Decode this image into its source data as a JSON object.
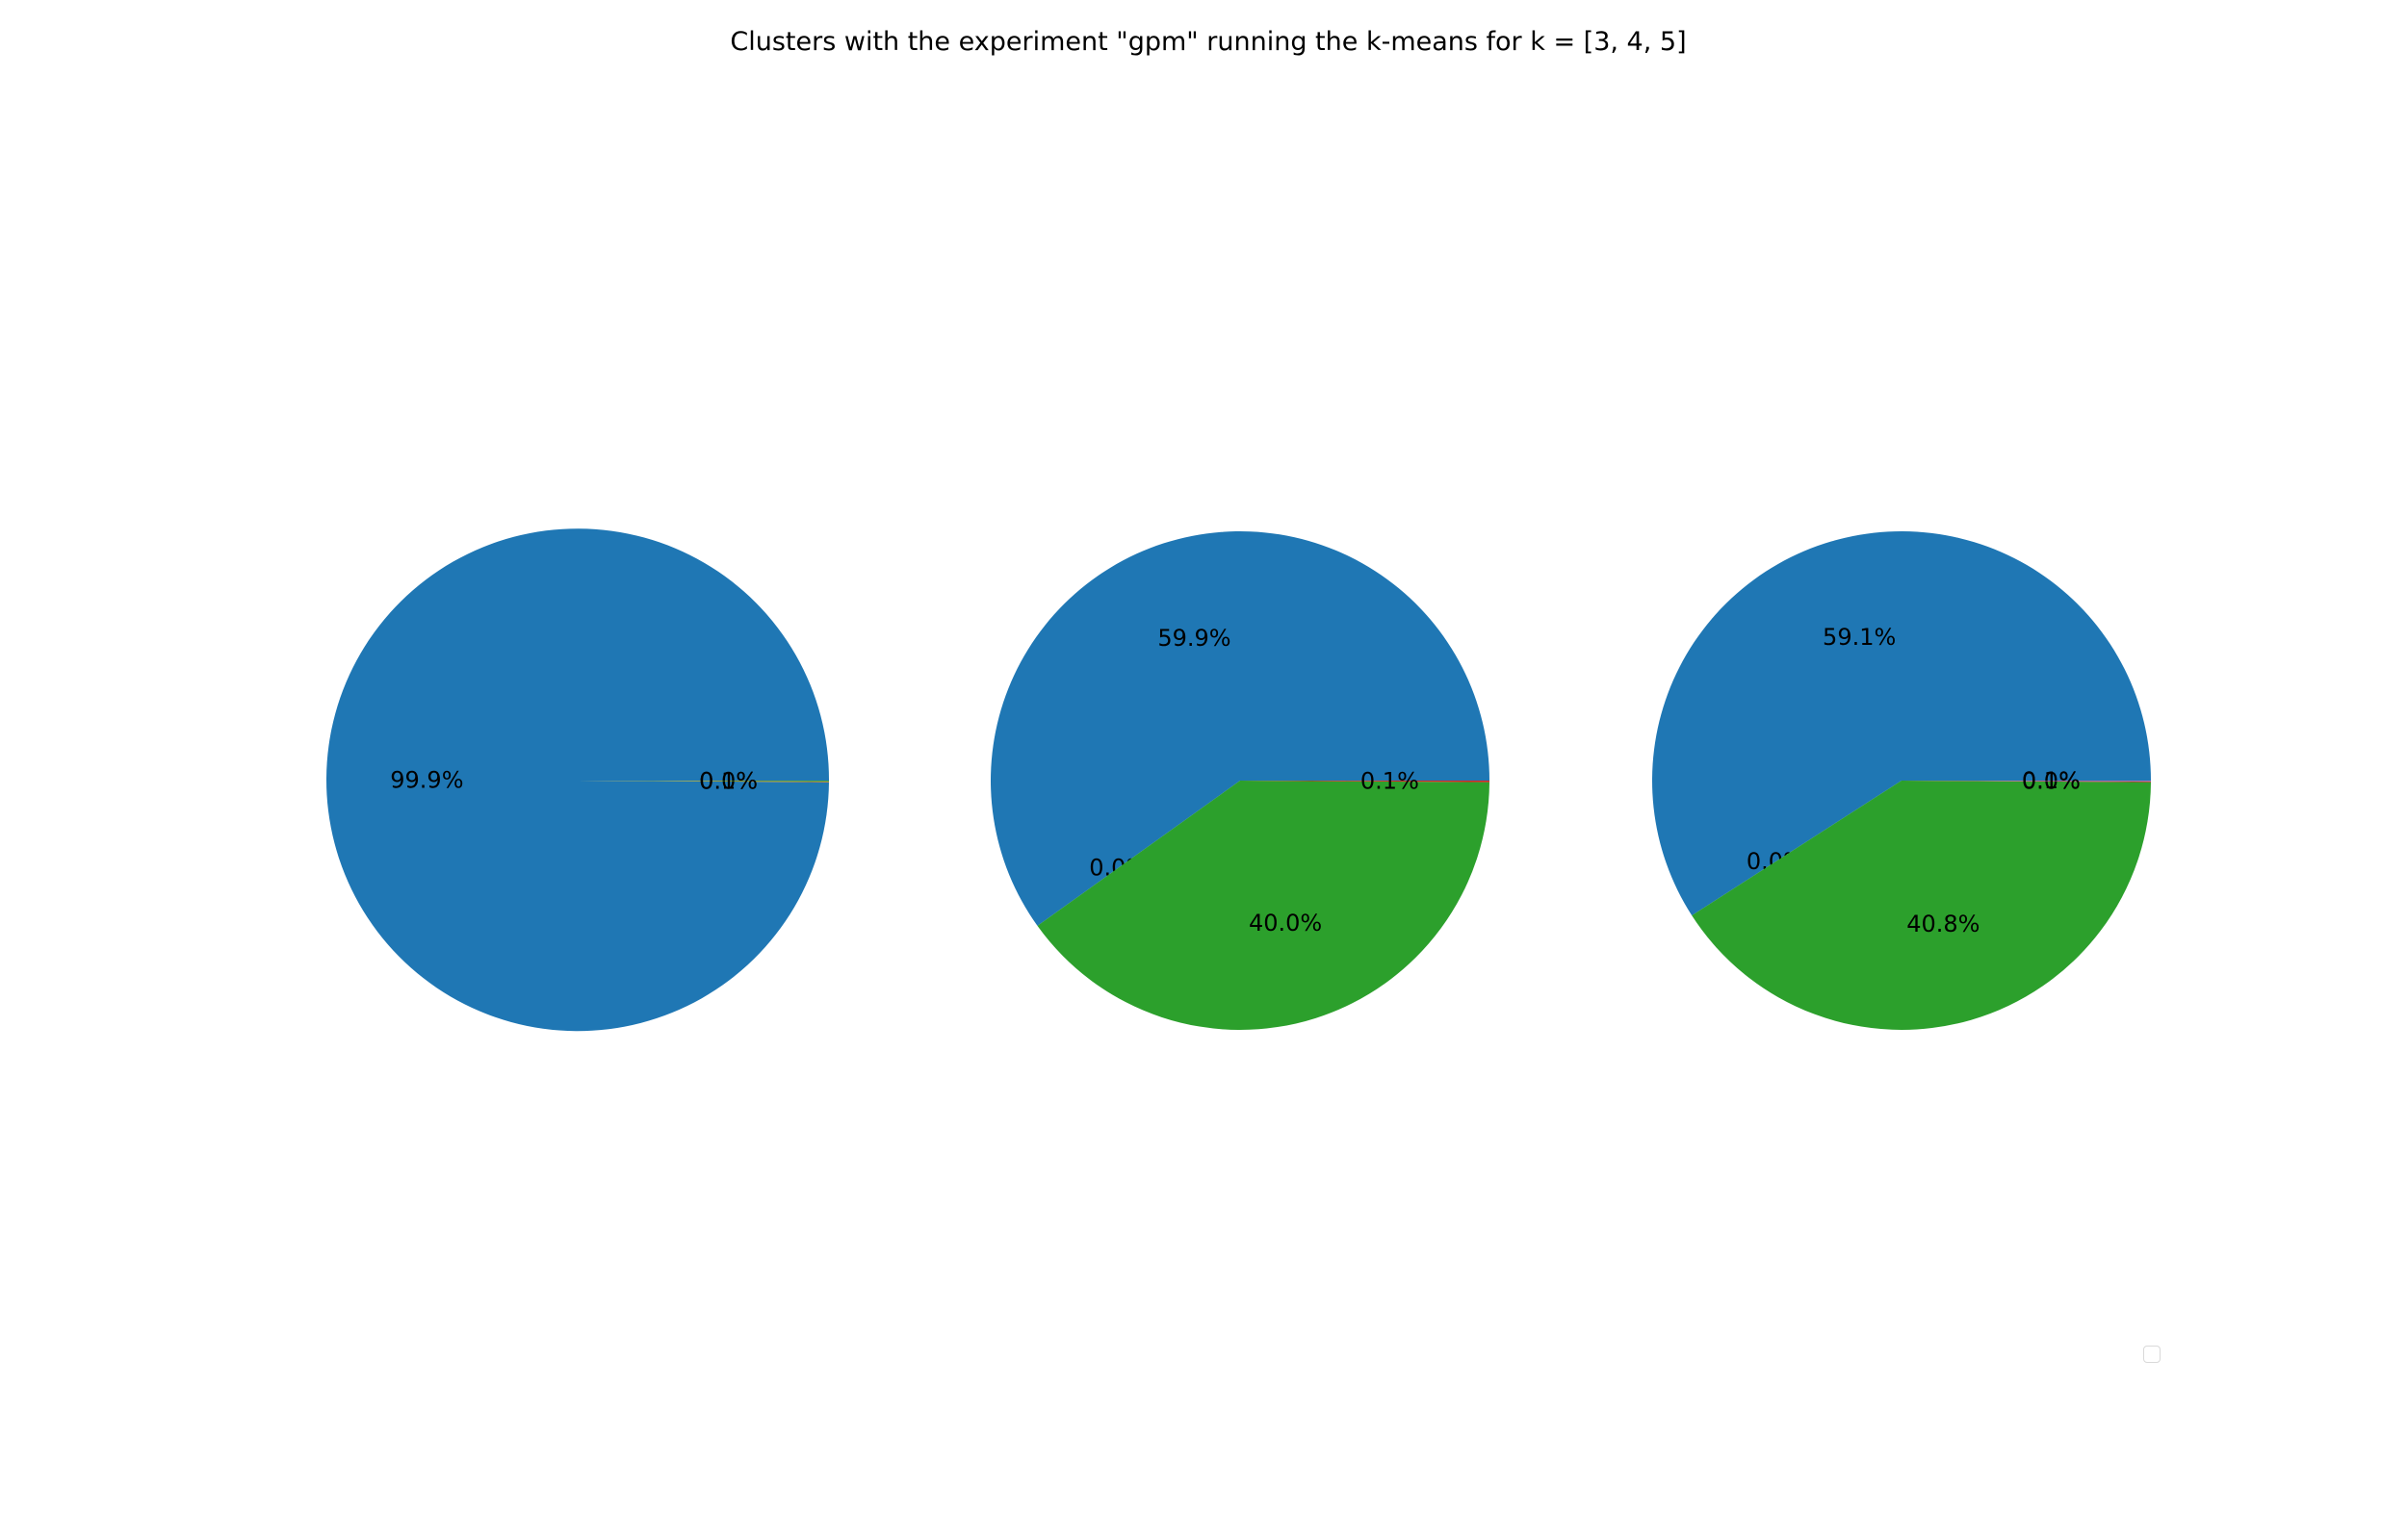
{
  "chart_data": {
    "type": "pie",
    "title": "Clusters with the experiment \"gpm\" running the k-means for k = [3, 4, 5]",
    "legend": {
      "placement": "lower-right",
      "entries": []
    },
    "colors": [
      "#1f77b4",
      "#ff7f0e",
      "#2ca02c",
      "#d62728",
      "#9467bd"
    ],
    "pies": [
      {
        "k": 3,
        "slices": [
          {
            "value": 99.9,
            "label": "99.9%",
            "color": "#1f77b4"
          },
          {
            "value": 0.05,
            "label": "0.0%",
            "color": "#ff7f0e"
          },
          {
            "value": 0.05,
            "label": "0.1%",
            "color": "#2ca02c"
          }
        ]
      },
      {
        "k": 4,
        "slices": [
          {
            "value": 59.9,
            "label": "59.9%",
            "color": "#1f77b4"
          },
          {
            "value": 0.0,
            "label": "0.0%",
            "color": "#ff7f0e"
          },
          {
            "value": 40.0,
            "label": "40.0%",
            "color": "#2ca02c"
          },
          {
            "value": 0.1,
            "label": "0.1%",
            "color": "#d62728"
          }
        ]
      },
      {
        "k": 5,
        "slices": [
          {
            "value": 59.1,
            "label": "59.1%",
            "color": "#1f77b4"
          },
          {
            "value": 0.0,
            "label": "0.0%",
            "color": "#ff7f0e"
          },
          {
            "value": 40.8,
            "label": "40.8%",
            "color": "#2ca02c"
          },
          {
            "value": 0.05,
            "label": "0.0%",
            "color": "#d62728"
          },
          {
            "value": 0.05,
            "label": "0.1%",
            "color": "#9467bd"
          }
        ]
      }
    ]
  }
}
